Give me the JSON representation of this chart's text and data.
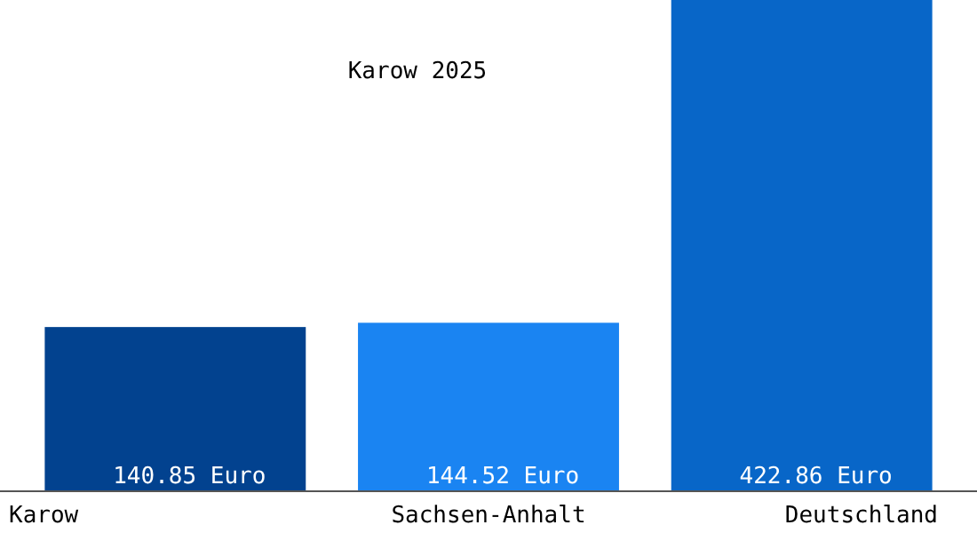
{
  "chart_data": {
    "type": "bar",
    "title": "Karow 2025",
    "categories": [
      "Karow",
      "Sachsen-Anhalt",
      "Deutschland"
    ],
    "values": [
      140.85,
      144.52,
      422.86
    ],
    "colors": [
      "#02428f",
      "#1a84f2",
      "#0866c8"
    ],
    "value_labels": [
      "140.85 Euro",
      "144.52 Euro",
      "422.86 Euro"
    ],
    "ylim": [
      0,
      422.86
    ],
    "tick_labels": "x"
  }
}
